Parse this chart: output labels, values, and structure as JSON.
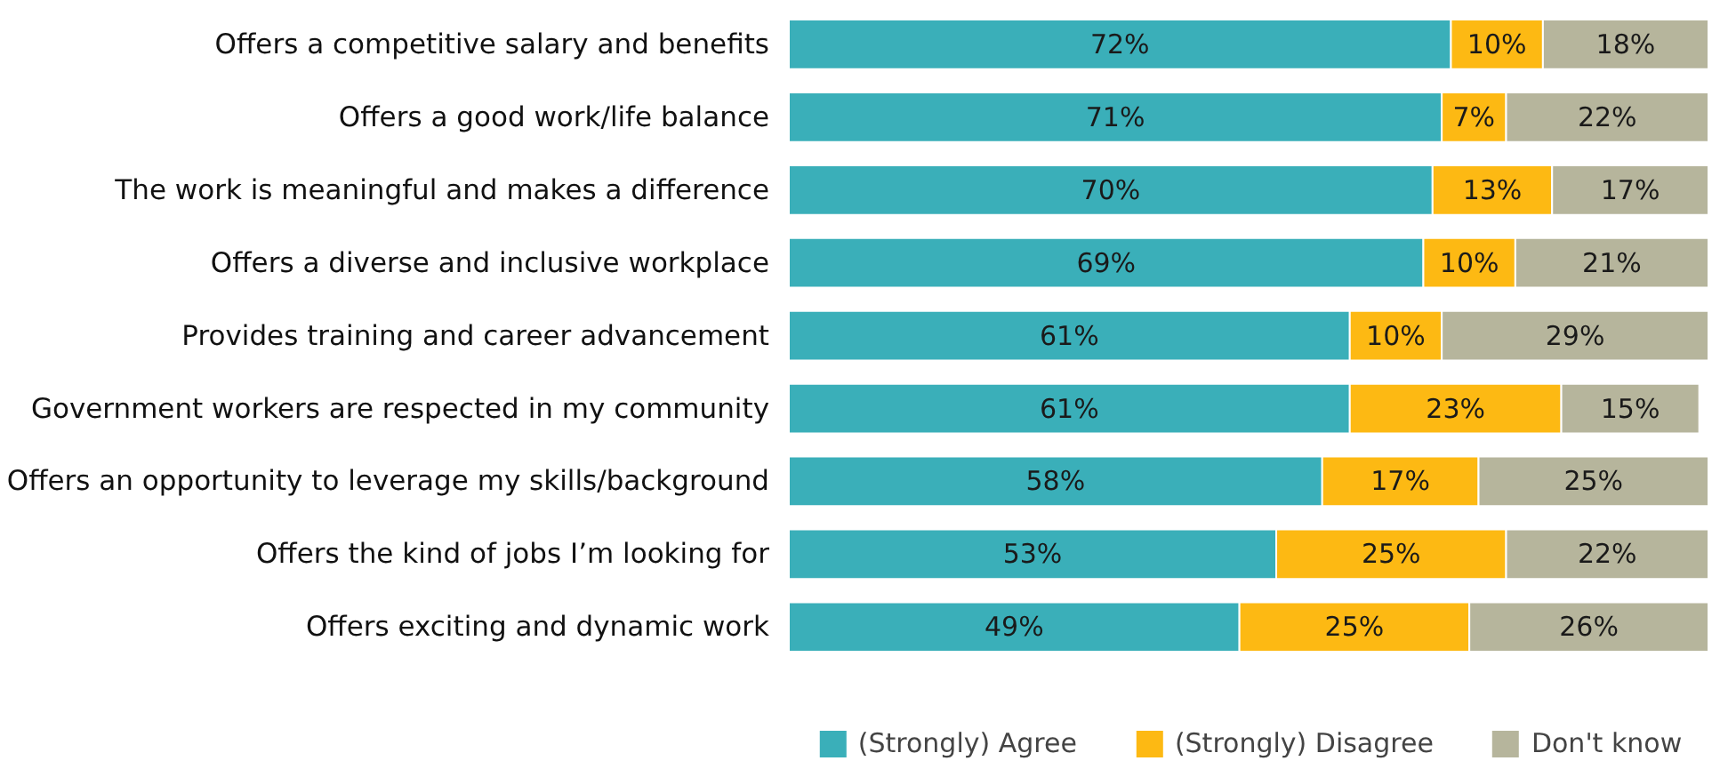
{
  "chart_data": {
    "type": "bar",
    "orientation": "horizontal",
    "stacked": true,
    "legend": "bottom",
    "data_labels": true,
    "grid": false,
    "categories": [
      "Offers a competitive salary and benefits",
      "Offers a good work/life balance",
      "The work is meaningful and makes a difference",
      "Offers a diverse and inclusive workplace",
      "Provides training and career advancement",
      "Government workers are respected in my community",
      "Offers an opportunity to leverage my skills/background",
      "Offers the kind of jobs I’m looking for",
      "Offers exciting and dynamic work"
    ],
    "series": [
      {
        "name": "(Strongly) Agree",
        "color": "#3aafb9",
        "values": [
          72,
          71,
          70,
          69,
          61,
          61,
          58,
          53,
          49
        ],
        "value_labels": [
          "72%",
          "71%",
          "70%",
          "69%",
          "61%",
          "61%",
          "58%",
          "53%",
          "49%"
        ]
      },
      {
        "name": "(Strongly) Disagree",
        "color": "#fdb913",
        "values": [
          10,
          7,
          13,
          10,
          10,
          23,
          17,
          25,
          25
        ],
        "value_labels": [
          "10%",
          "7%",
          "13%",
          "10%",
          "10%",
          "23%",
          "17%",
          "25%",
          "25%"
        ]
      },
      {
        "name": "Don't know",
        "color": "#b6b59c",
        "values": [
          18,
          22,
          17,
          21,
          29,
          15,
          25,
          22,
          26
        ],
        "value_labels": [
          "18%",
          "22%",
          "17%",
          "21%",
          "29%",
          "15%",
          "25%",
          "22%",
          "26%"
        ]
      }
    ]
  }
}
